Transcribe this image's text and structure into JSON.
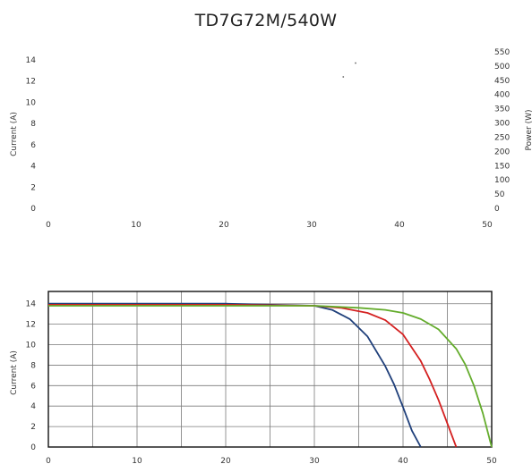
{
  "title": "TD7G72M/540W",
  "chart_data": [
    {
      "type": "line",
      "title": "",
      "ylabel": "Current (A)",
      "y2label": "Power (W)",
      "xlim": [
        0,
        50
      ],
      "ylim": [
        0,
        14
      ],
      "y2lim": [
        0,
        550
      ],
      "xticks": [
        0,
        10,
        20,
        30,
        40,
        50
      ],
      "yticks": [
        0,
        2,
        4,
        6,
        8,
        10,
        12,
        14
      ],
      "y2ticks": [
        0,
        50,
        100,
        150,
        200,
        250,
        300,
        350,
        400,
        450,
        500,
        550
      ],
      "grid": false,
      "series": [],
      "visible_points": [
        {
          "x": 33.6,
          "y": 12.4
        },
        {
          "x": 35.0,
          "y": 13.7
        }
      ]
    },
    {
      "type": "line",
      "title": "",
      "ylabel": "Current (A)",
      "xlim": [
        0,
        50
      ],
      "ylim": [
        0,
        15.2
      ],
      "xticks": [
        0,
        10,
        20,
        30,
        40,
        50
      ],
      "yticks": [
        0,
        2,
        4,
        6,
        8,
        10,
        12,
        14
      ],
      "grid": true,
      "series": [
        {
          "color": "#1f3f7a",
          "x": [
            0,
            10,
            20,
            30,
            32,
            34,
            36,
            38,
            39,
            40,
            41,
            42
          ],
          "y": [
            14.0,
            14.0,
            14.0,
            13.8,
            13.4,
            12.5,
            10.8,
            7.9,
            6.1,
            3.9,
            1.6,
            0
          ]
        },
        {
          "color": "#d42020",
          "x": [
            0,
            10,
            20,
            30,
            33,
            36,
            38,
            40,
            42,
            43,
            44,
            45,
            46
          ],
          "y": [
            13.9,
            13.9,
            13.9,
            13.8,
            13.6,
            13.1,
            12.4,
            11.0,
            8.4,
            6.6,
            4.6,
            2.3,
            0
          ]
        },
        {
          "color": "#64ac2c",
          "x": [
            0,
            10,
            20,
            30,
            35,
            38,
            40,
            42,
            44,
            46,
            47,
            48,
            49,
            50
          ],
          "y": [
            13.8,
            13.8,
            13.8,
            13.8,
            13.6,
            13.4,
            13.1,
            12.5,
            11.5,
            9.6,
            8.1,
            6.0,
            3.3,
            0
          ]
        }
      ]
    }
  ]
}
